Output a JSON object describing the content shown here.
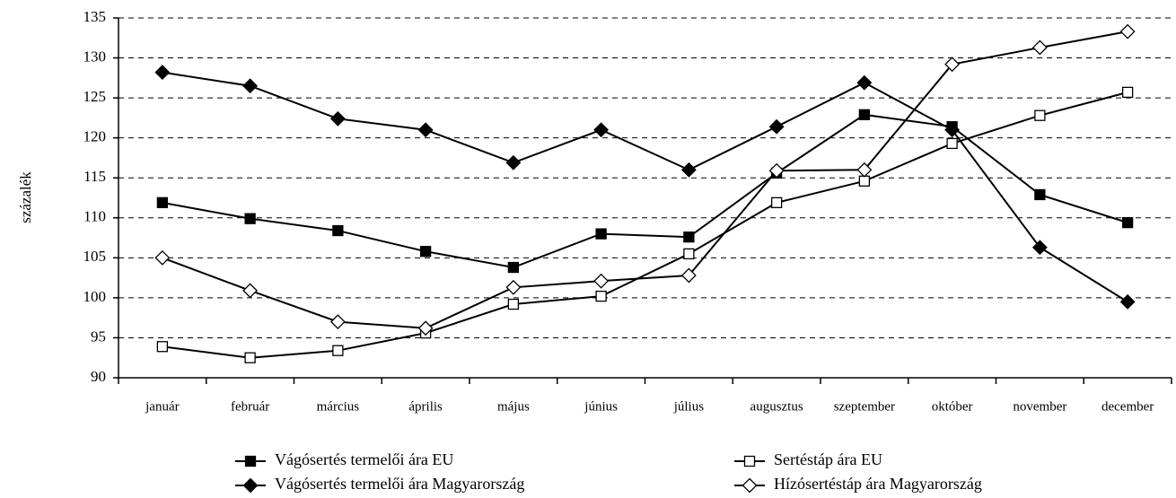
{
  "chart_data": {
    "type": "line",
    "y_label": "százalék",
    "categories": [
      "január",
      "február",
      "március",
      "április",
      "május",
      "június",
      "július",
      "augusztus",
      "szeptember",
      "október",
      "november",
      "december"
    ],
    "series": [
      {
        "name": "Vágósertés termelői ára EU",
        "color": "#000000",
        "marker": "square",
        "marker_fill": "#000000",
        "values": [
          111.9,
          109.9,
          108.4,
          105.8,
          103.8,
          108,
          107.6,
          115.6,
          122.9,
          121.4,
          112.9,
          109.4
        ]
      },
      {
        "name": "Sertéstáp ára EU",
        "color": "#000000",
        "marker": "square",
        "marker_fill": "#ffffff",
        "values": [
          93.9,
          92.5,
          93.4,
          95.6,
          99.2,
          100.2,
          105.5,
          111.9,
          114.6,
          119.3,
          122.8,
          125.7
        ]
      },
      {
        "name": "Vágósertés termelői ára Magyarország",
        "color": "#000000",
        "marker": "diamond",
        "marker_fill": "#000000",
        "values": [
          128.2,
          126.5,
          122.4,
          121,
          116.9,
          121,
          116,
          121.4,
          126.9,
          121,
          106.3,
          99.5
        ]
      },
      {
        "name": "Hízósertéstáp ára Magyarország",
        "color": "#000000",
        "marker": "diamond",
        "marker_fill": "#ffffff",
        "values": [
          105,
          100.9,
          97,
          96.2,
          101.3,
          102.1,
          102.8,
          115.9,
          116,
          129.2,
          131.3,
          133.3
        ]
      }
    ],
    "ylim": [
      90,
      135
    ],
    "yticks": [
      90,
      95,
      100,
      105,
      110,
      115,
      120,
      125,
      130,
      135
    ],
    "grid": true,
    "grid_style": "dashed",
    "legend": "bottom"
  }
}
